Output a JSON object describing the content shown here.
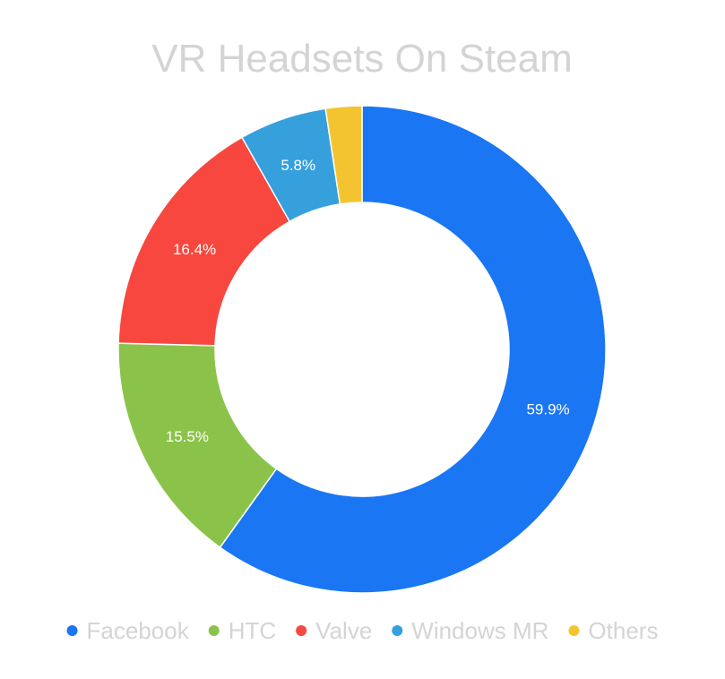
{
  "chart_data": {
    "type": "pie",
    "donut": true,
    "title": "VR Headsets On Steam",
    "categories": [
      "Facebook",
      "HTC",
      "Valve",
      "Windows MR",
      "Others"
    ],
    "values": [
      59.9,
      15.5,
      16.4,
      5.8,
      2.4
    ],
    "value_labels": [
      "59.9%",
      "15.5%",
      "16.4%",
      "5.8%",
      ""
    ],
    "colors": [
      "#1a76f2",
      "#8bc34a",
      "#f7473f",
      "#36a0dc",
      "#f4c430"
    ],
    "start_angle_deg": 0,
    "direction": "clockwise",
    "legend_position": "bottom",
    "title_color": "#d4d4d4",
    "legend_text_color": "#d4d4d4"
  }
}
